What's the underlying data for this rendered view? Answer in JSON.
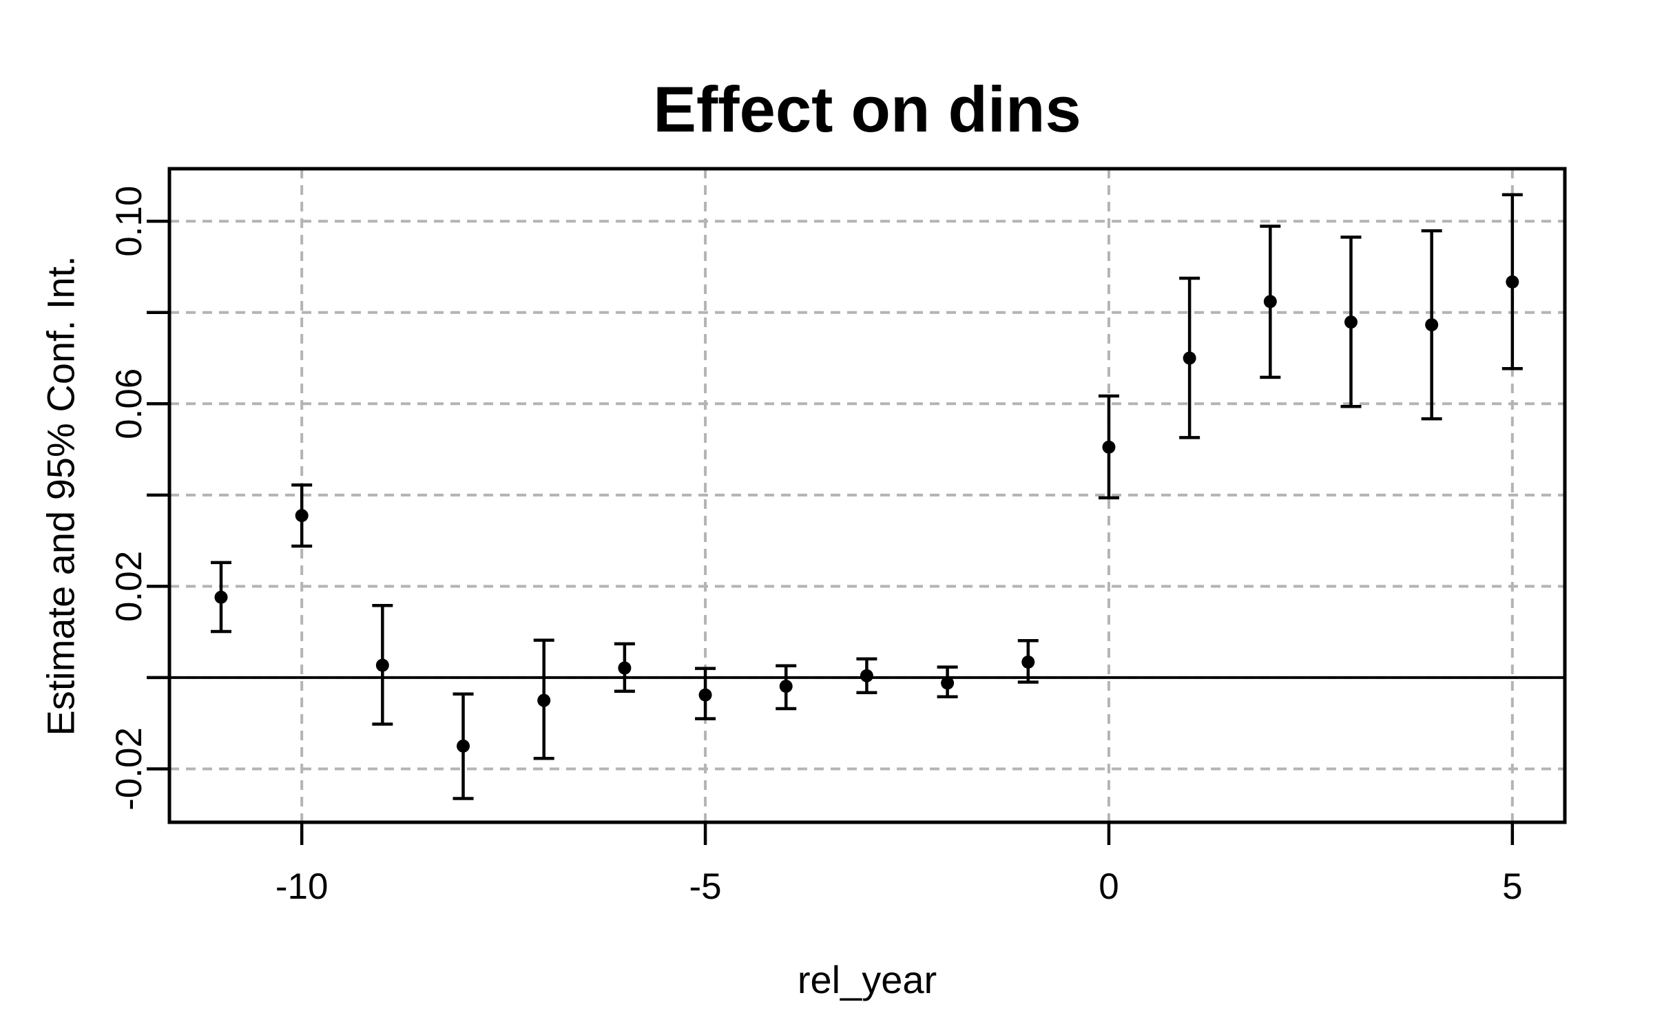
{
  "chart_data": {
    "type": "scatter",
    "subtype": "point-estimates-with-error-bars",
    "title": "Effect on dins",
    "xlabel": "rel_year",
    "ylabel": "Estimate and 95% Conf. Int.",
    "x": [
      -11,
      -10,
      -9,
      -8,
      -7,
      -6,
      -5,
      -4,
      -3,
      -2,
      -1,
      0,
      1,
      2,
      3,
      4,
      5
    ],
    "series": [
      {
        "name": "estimate",
        "values": [
          0.0176,
          0.0355,
          0.0027,
          -0.015,
          -0.005,
          0.0021,
          -0.0038,
          -0.0019,
          0.0004,
          -0.0012,
          0.0034,
          0.0505,
          0.07,
          0.0824,
          0.0779,
          0.0773,
          0.0867
        ]
      },
      {
        "name": "ci_lower",
        "values": [
          0.0101,
          0.0288,
          -0.0102,
          -0.0265,
          -0.0177,
          -0.003,
          -0.009,
          -0.0068,
          -0.0033,
          -0.0042,
          -0.001,
          0.0394,
          0.0526,
          0.0658,
          0.0594,
          0.0567,
          0.0677
        ]
      },
      {
        "name": "ci_upper",
        "values": [
          0.0252,
          0.0422,
          0.0158,
          -0.0036,
          0.0082,
          0.0074,
          0.002,
          0.0026,
          0.0041,
          0.0023,
          0.0081,
          0.0617,
          0.0875,
          0.0989,
          0.0965,
          0.0979,
          0.1058
        ]
      }
    ],
    "xlim": [
      -11.64,
      5.65
    ],
    "ylim": [
      -0.0317,
      0.1115
    ],
    "x_ticks": [
      {
        "value": -10,
        "label": "-10"
      },
      {
        "value": -5,
        "label": "-5"
      },
      {
        "value": 0,
        "label": "0"
      },
      {
        "value": 5,
        "label": "5"
      }
    ],
    "y_ticks_labeled": [
      {
        "value": 0.1,
        "label": "0.10"
      },
      {
        "value": 0.06,
        "label": "0.06"
      },
      {
        "value": 0.02,
        "label": "0.02"
      },
      {
        "value": -0.02,
        "label": "-0.02"
      }
    ],
    "y_tick_values": [
      -0.02,
      0.0,
      0.02,
      0.04,
      0.06,
      0.08,
      0.1
    ],
    "reference_line_y": 0,
    "grid": true,
    "grid_style": "dashed",
    "legend": "none",
    "colors": {
      "data": "#000000",
      "grid": "#b4b4b4",
      "axis": "#000000",
      "background": "#ffffff"
    }
  }
}
